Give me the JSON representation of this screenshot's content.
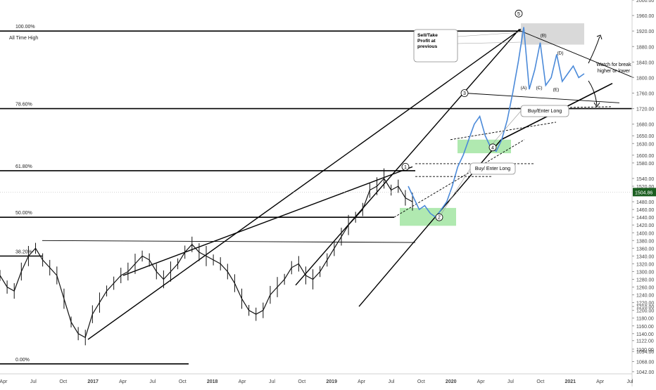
{
  "chart_data": {
    "type": "line",
    "title": "",
    "ylim": [
      1040,
      2000
    ],
    "price_axis": {
      "ticks": [
        "2000.00",
        "1960.00",
        "1920.00",
        "1880.00",
        "1840.00",
        "1800.00",
        "1760.00",
        "1720.00",
        "1680.00",
        "1650.00",
        "1630.00",
        "1600.00",
        "1580.00",
        "1540.00",
        "1520.00",
        "1504.86",
        "1480.00",
        "1460.00",
        "1440.00",
        "1420.00",
        "1400.00",
        "1380.00",
        "1360.00",
        "1340.00",
        "1320.00",
        "1300.00",
        "1280.00",
        "1260.00",
        "1240.00",
        "1220.00",
        "1210.00",
        "1200.00",
        "1180.00",
        "1160.00",
        "1140.00",
        "1122.00",
        "1100.00",
        "1094.00",
        "1068.00",
        "1042.00"
      ],
      "tick_values": [
        2000,
        1960,
        1920,
        1880,
        1840,
        1800,
        1760,
        1720,
        1680,
        1650,
        1630,
        1600,
        1580,
        1540,
        1520,
        1480,
        1460,
        1440,
        1420,
        1400,
        1380,
        1360,
        1340,
        1320,
        1300,
        1280,
        1260,
        1240,
        1220,
        1210,
        1200,
        1180,
        1160,
        1140,
        1122,
        1100,
        1094,
        1068,
        1042
      ],
      "current_price": 1504.86
    },
    "time_axis": [
      "Apr",
      "Jul",
      "Oct",
      "2017",
      "Apr",
      "Jul",
      "Oct",
      "2018",
      "Apr",
      "Jul",
      "Oct",
      "2019",
      "Apr",
      "Jul",
      "Oct",
      "2020",
      "Apr",
      "Jul",
      "Oct",
      "2021",
      "Apr",
      "Jul"
    ],
    "fib_levels": [
      {
        "label": "100.00%",
        "value": 1920
      },
      {
        "label": "78.60%",
        "value": 1720
      },
      {
        "label": "61.80%",
        "value": 1560
      },
      {
        "label": "50.00%",
        "value": 1440
      },
      {
        "label": "38.20%",
        "value": 1340
      },
      {
        "label": "0.00%",
        "value": 1062
      }
    ],
    "annotations": {
      "ath": "All Time High",
      "sell": "Sell/Take Profit at previous ATH",
      "buy1": "Buy/Enter Long",
      "buy2": "Buy/ Enter Long",
      "watch": "Watch for break higher or lower"
    },
    "waves": [
      "1",
      "2",
      "3",
      "4",
      "5"
    ],
    "sub_waves": [
      "(A)",
      "(B)",
      "(C)",
      "(D)",
      "(E)"
    ],
    "series": [
      {
        "name": "price",
        "values": [
          1290,
          1260,
          1250,
          1300,
          1340,
          1360,
          1330,
          1310,
          1290,
          1230,
          1170,
          1140,
          1130,
          1190,
          1220,
          1250,
          1270,
          1290,
          1300,
          1320,
          1340,
          1330,
          1300,
          1280,
          1300,
          1320,
          1350,
          1370,
          1350,
          1340,
          1330,
          1320,
          1300,
          1270,
          1230,
          1200,
          1190,
          1200,
          1240,
          1260,
          1280,
          1310,
          1320,
          1290,
          1280,
          1300,
          1330,
          1360,
          1390,
          1420,
          1440,
          1460,
          1510,
          1520,
          1540,
          1510,
          1520,
          1490,
          1480
        ]
      }
    ],
    "projection": {
      "name": "projection",
      "values": [
        1520,
        1490,
        1460,
        1470,
        1450,
        1440,
        1460,
        1480,
        1520,
        1570,
        1600,
        1640,
        1680,
        1700,
        1650,
        1620,
        1610,
        1640,
        1690,
        1760,
        1840,
        1930,
        1770,
        1820,
        1890,
        1780,
        1800,
        1860,
        1790,
        1810,
        1830,
        1800,
        1810
      ]
    }
  },
  "colors": {
    "candle": "#111111",
    "projection": "#4b8ad9",
    "buy_zone": "#8fe08f",
    "sell_zone": "#cccccc",
    "price_label_bg": "#1b5e20",
    "price_label_fg": "#ffffff"
  }
}
